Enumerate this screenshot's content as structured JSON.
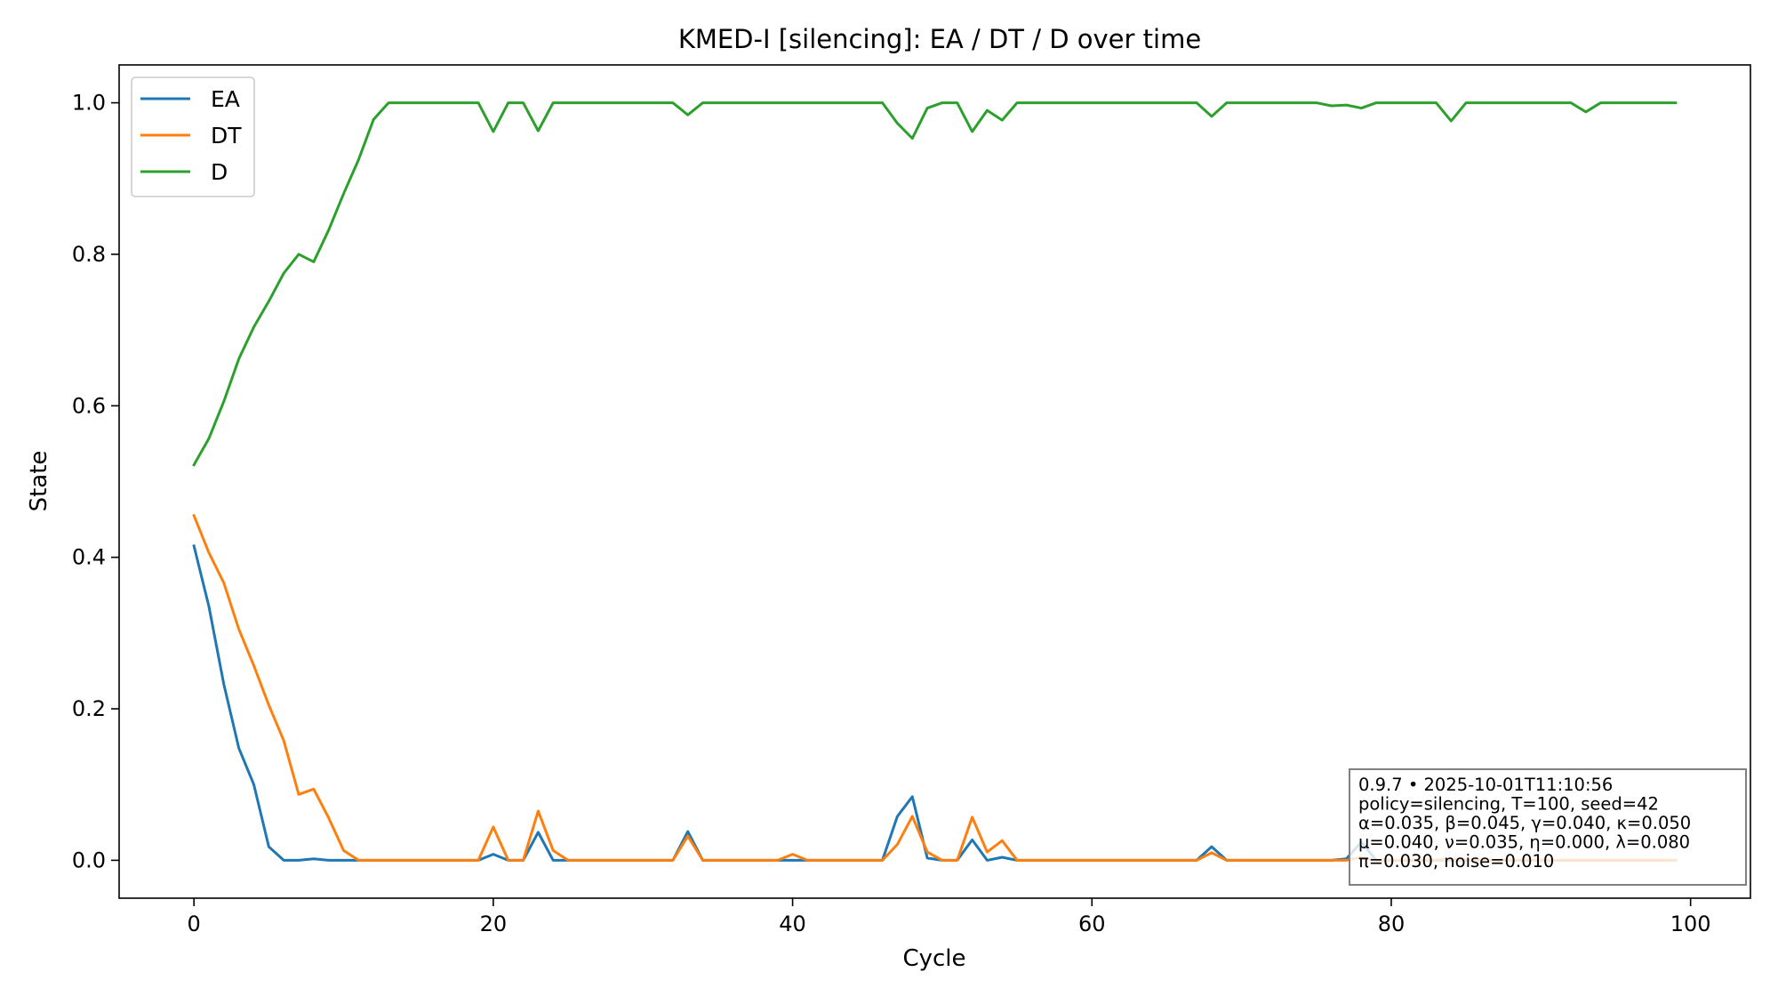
{
  "chart_data": {
    "type": "line",
    "title": "KMED-I [silencing]: EA / DT / D over time",
    "xlabel": "Cycle",
    "ylabel": "State",
    "xlim": [
      -5,
      104
    ],
    "ylim": [
      -0.05,
      1.05
    ],
    "xticks": [
      0,
      20,
      40,
      60,
      80,
      100
    ],
    "yticks": [
      0.0,
      0.2,
      0.4,
      0.6,
      0.8,
      1.0
    ],
    "xtick_labels": [
      "0",
      "20",
      "40",
      "60",
      "80",
      "100"
    ],
    "ytick_labels": [
      "0.0",
      "0.2",
      "0.4",
      "0.6",
      "0.8",
      "1.0"
    ],
    "grid": false,
    "legend_position": "top-left",
    "series": [
      {
        "name": "EA",
        "color": "#1f77b4",
        "values": [
          0.415,
          0.335,
          0.232,
          0.148,
          0.1,
          0.018,
          0.0,
          0.0,
          0.002,
          0.0,
          0.0,
          0.0,
          0.0,
          0.0,
          0.0,
          0.0,
          0.0,
          0.0,
          0.0,
          0.0,
          0.008,
          0.0,
          0.0,
          0.037,
          0.0,
          0.0,
          0.0,
          0.0,
          0.0,
          0.0,
          0.0,
          0.0,
          0.0,
          0.038,
          0.0,
          0.0,
          0.0,
          0.0,
          0.0,
          0.0,
          0.0,
          0.0,
          0.0,
          0.0,
          0.0,
          0.0,
          0.0,
          0.058,
          0.084,
          0.003,
          0.0,
          0.0,
          0.027,
          0.0,
          0.004,
          0.0,
          0.0,
          0.0,
          0.0,
          0.0,
          0.0,
          0.0,
          0.0,
          0.0,
          0.0,
          0.0,
          0.0,
          0.0,
          0.018,
          0.0,
          0.0,
          0.0,
          0.0,
          0.0,
          0.0,
          0.0,
          0.0,
          0.002,
          0.024,
          0.0,
          0.0,
          0.0,
          0.0,
          0.0,
          0.0,
          0.0,
          0.0,
          0.0,
          0.0,
          0.0,
          0.0,
          0.0,
          0.0,
          0.0,
          0.0,
          0.0,
          0.0,
          0.0,
          0.0,
          0.0
        ]
      },
      {
        "name": "DT",
        "color": "#ff7f0e",
        "values": [
          0.455,
          0.406,
          0.366,
          0.305,
          0.257,
          0.205,
          0.158,
          0.087,
          0.094,
          0.056,
          0.013,
          0.0,
          0.0,
          0.0,
          0.0,
          0.0,
          0.0,
          0.0,
          0.0,
          0.0,
          0.044,
          0.0,
          0.0,
          0.065,
          0.013,
          0.0,
          0.0,
          0.0,
          0.0,
          0.0,
          0.0,
          0.0,
          0.0,
          0.032,
          0.0,
          0.0,
          0.0,
          0.0,
          0.0,
          0.0,
          0.008,
          0.0,
          0.0,
          0.0,
          0.0,
          0.0,
          0.0,
          0.021,
          0.058,
          0.011,
          0.0,
          0.0,
          0.057,
          0.011,
          0.026,
          0.0,
          0.0,
          0.0,
          0.0,
          0.0,
          0.0,
          0.0,
          0.0,
          0.0,
          0.0,
          0.0,
          0.0,
          0.0,
          0.01,
          0.0,
          0.0,
          0.0,
          0.0,
          0.0,
          0.0,
          0.0,
          0.0,
          0.0,
          0.004,
          0.0,
          0.0,
          0.0,
          0.0,
          0.0,
          0.002,
          0.0,
          0.0,
          0.0,
          0.0,
          0.0,
          0.0,
          0.0,
          0.0,
          0.0,
          0.0,
          0.0,
          0.0,
          0.0,
          0.0,
          0.0
        ]
      },
      {
        "name": "D",
        "color": "#2ca02c",
        "values": [
          0.522,
          0.557,
          0.606,
          0.662,
          0.704,
          0.738,
          0.775,
          0.8,
          0.79,
          0.832,
          0.88,
          0.925,
          0.978,
          1.0,
          1.0,
          1.0,
          1.0,
          1.0,
          1.0,
          1.0,
          0.962,
          1.0,
          1.0,
          0.963,
          1.0,
          1.0,
          1.0,
          1.0,
          1.0,
          1.0,
          1.0,
          1.0,
          1.0,
          0.984,
          1.0,
          1.0,
          1.0,
          1.0,
          1.0,
          1.0,
          1.0,
          1.0,
          1.0,
          1.0,
          1.0,
          1.0,
          1.0,
          0.973,
          0.953,
          0.993,
          1.0,
          1.0,
          0.962,
          0.99,
          0.977,
          1.0,
          1.0,
          1.0,
          1.0,
          1.0,
          1.0,
          1.0,
          1.0,
          1.0,
          1.0,
          1.0,
          1.0,
          1.0,
          0.982,
          1.0,
          1.0,
          1.0,
          1.0,
          1.0,
          1.0,
          1.0,
          0.996,
          0.997,
          0.993,
          1.0,
          1.0,
          1.0,
          1.0,
          1.0,
          0.976,
          1.0,
          1.0,
          1.0,
          1.0,
          1.0,
          1.0,
          1.0,
          1.0,
          0.988,
          1.0,
          1.0,
          1.0,
          1.0,
          1.0,
          1.0
        ]
      }
    ],
    "annotation": {
      "position": "bottom-right",
      "lines": [
        "0.9.7  •  2025-10-01T11:10:56",
        "policy=silencing, T=100, seed=42",
        "α=0.035, β=0.045, γ=0.040, κ=0.050",
        "μ=0.040, ν=0.035, η=0.000, λ=0.080",
        "π=0.030, noise=0.010"
      ]
    }
  }
}
